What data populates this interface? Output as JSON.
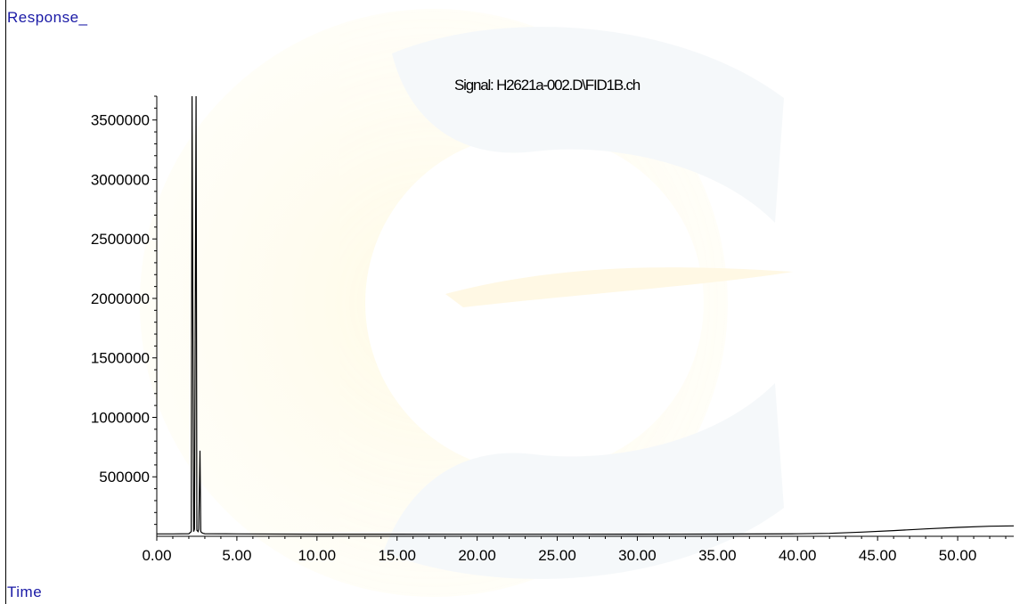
{
  "chart_data": {
    "type": "line",
    "title": "Signal: H2621a-002.D\\FID1B.ch",
    "ylabel": "Response_",
    "xlabel": "Time",
    "xlim": [
      0,
      53.5
    ],
    "ylim": [
      0,
      3700000
    ],
    "x_ticks": [
      "0.00",
      "5.00",
      "10.00",
      "15.00",
      "20.00",
      "25.00",
      "30.00",
      "35.00",
      "40.00",
      "45.00",
      "50.00"
    ],
    "y_ticks": [
      "500000",
      "1000000",
      "1500000",
      "2000000",
      "2500000",
      "3000000",
      "3500000"
    ],
    "grid": false,
    "series": [
      {
        "x": [
          0.0,
          1.0,
          2.0,
          2.15,
          2.2,
          2.3,
          2.35,
          2.45,
          2.5,
          2.58,
          2.62,
          2.7,
          2.75,
          2.82,
          2.9,
          3.0,
          5.0,
          10.0,
          15.0,
          20.0,
          25.0,
          30.0,
          35.0,
          40.0,
          42.0,
          44.0,
          46.0,
          48.0,
          50.0,
          52.0,
          53.5
        ],
        "y": [
          20000,
          20000,
          22000,
          40000,
          3700000,
          40000,
          60000,
          3700000,
          50000,
          40000,
          60000,
          720000,
          40000,
          30000,
          25000,
          22000,
          20000,
          18000,
          18000,
          17000,
          17000,
          18000,
          19000,
          21000,
          25000,
          35000,
          48000,
          62000,
          75000,
          85000,
          88000
        ]
      }
    ]
  }
}
